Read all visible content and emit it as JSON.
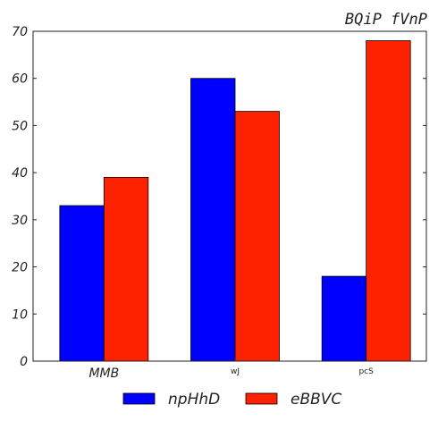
{
  "chart_data": {
    "type": "bar",
    "title": "BQiP fVnP",
    "xlabel": "",
    "ylabel": "",
    "categories": [
      "MMB",
      "wJ",
      "pcS"
    ],
    "series": [
      {
        "name": "npHhD",
        "values": [
          33,
          60,
          18
        ],
        "color": "#0000ff"
      },
      {
        "name": "eBBVC",
        "values": [
          39,
          53,
          68
        ],
        "color": "#ff2200"
      }
    ],
    "ylim": [
      0,
      70
    ],
    "yticks": [
      0,
      10,
      20,
      30,
      40,
      50,
      60,
      70
    ],
    "grid": false,
    "legend_position": "bottom"
  }
}
